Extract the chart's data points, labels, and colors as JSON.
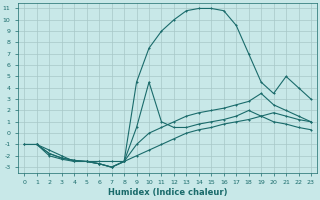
{
  "xlabel": "Humidex (Indice chaleur)",
  "xlim": [
    -0.5,
    23.5
  ],
  "ylim": [
    -3.5,
    11.5
  ],
  "xticks": [
    0,
    1,
    2,
    3,
    4,
    5,
    6,
    7,
    8,
    9,
    10,
    11,
    12,
    13,
    14,
    15,
    16,
    17,
    18,
    19,
    20,
    21,
    22,
    23
  ],
  "yticks": [
    -3,
    -2,
    -1,
    0,
    1,
    2,
    3,
    4,
    5,
    6,
    7,
    8,
    9,
    10,
    11
  ],
  "bg_color": "#c8e8e8",
  "grid_color": "#a8c8c8",
  "line_color": "#1a6b6b",
  "line1_x": [
    1,
    2,
    3,
    4,
    5,
    6,
    7,
    8,
    9,
    10,
    11,
    12,
    13,
    14,
    15,
    16,
    17,
    18,
    19,
    20,
    21,
    22,
    23
  ],
  "line1_y": [
    -1,
    -2,
    -2.3,
    -2.5,
    -2.5,
    -2.5,
    -2.5,
    -2.5,
    -2,
    -1.5,
    -1,
    -0.5,
    0,
    0.3,
    0.5,
    0.8,
    1.0,
    1.2,
    1.5,
    1.8,
    1.5,
    1.2,
    1.0
  ],
  "line2_x": [
    0,
    1,
    2,
    3,
    4,
    5,
    6,
    7,
    8,
    9,
    10,
    11,
    12,
    13,
    14,
    15,
    16,
    17,
    18,
    19,
    20,
    21,
    22,
    23
  ],
  "line2_y": [
    -1,
    -1,
    -1.5,
    -2,
    -2.5,
    -2.5,
    -2.7,
    -3,
    -2.5,
    -1,
    0,
    0.5,
    1,
    1.5,
    1.8,
    2.0,
    2.2,
    2.5,
    2.8,
    3.5,
    2.5,
    2.0,
    1.5,
    1.0
  ],
  "line3_x": [
    0,
    1,
    2,
    3,
    4,
    5,
    6,
    7,
    8,
    9,
    10,
    11,
    12,
    13,
    14,
    15,
    16,
    17,
    18,
    19,
    20,
    21,
    22,
    23
  ],
  "line3_y": [
    -1,
    -1,
    -1.8,
    -2.2,
    -2.4,
    -2.5,
    -2.7,
    -3,
    -2.5,
    0.5,
    4.5,
    1.0,
    0.5,
    0.5,
    0.8,
    1.0,
    1.2,
    1.5,
    2.0,
    1.5,
    1.0,
    0.8,
    0.5,
    0.3
  ],
  "line4_x": [
    1,
    2,
    3,
    4,
    5,
    6,
    7,
    8,
    9,
    10,
    11,
    12,
    13,
    14,
    15,
    16,
    17,
    18,
    19,
    20,
    21,
    22,
    23
  ],
  "line4_y": [
    -1,
    -1.8,
    -2.2,
    -2.4,
    -2.5,
    -2.7,
    -3,
    -2.5,
    4.5,
    7.5,
    9.0,
    10.0,
    10.8,
    11.0,
    11.0,
    10.8,
    9.5,
    7.0,
    4.5,
    3.5,
    5.0,
    4.0,
    3.0
  ]
}
